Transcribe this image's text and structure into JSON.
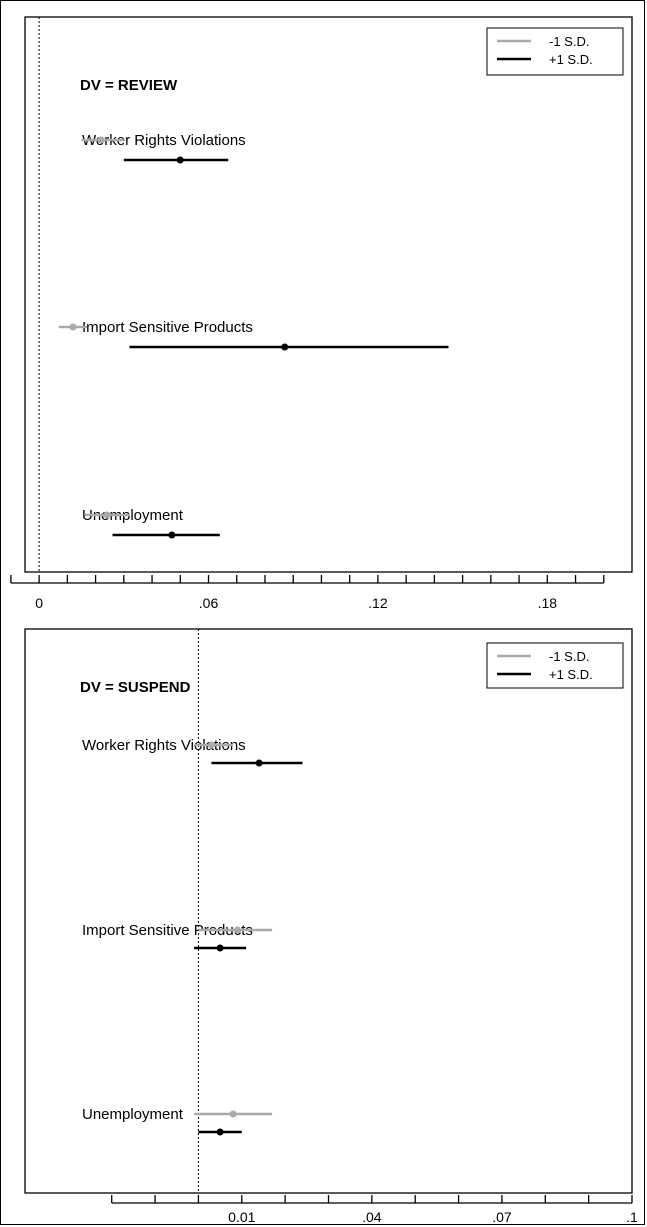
{
  "chart_data": [
    {
      "type": "dot-and-whisker",
      "title": "DV = REVIEW",
      "categories": [
        "Worker Rights Violations",
        "Import Sensitive Products",
        "Unemployment"
      ],
      "xlim": [
        -0.005,
        0.21
      ],
      "x_ticks": [
        0,
        0.06,
        0.12,
        0.18
      ],
      "x_tick_labels": [
        "0",
        ".06",
        ".12",
        ".18"
      ],
      "minor_ticks": [
        -0.01,
        0.01,
        0.02,
        0.03,
        0.04,
        0.05,
        0.07,
        0.08,
        0.09,
        0.1,
        0.11,
        0.13,
        0.14,
        0.15,
        0.16,
        0.17,
        0.19,
        0.2
      ],
      "reference_line": 0,
      "legend": {
        "position": "top-right",
        "entries": [
          "-1 S.D.",
          "+1 S.D."
        ]
      },
      "series": [
        {
          "name": "-1 S.D.",
          "color": "#aaaaaa",
          "points": [
            {
              "category": "Worker Rights Violations",
              "est": 0.022,
              "lo": 0.015,
              "hi": 0.03
            },
            {
              "category": "Import Sensitive Products",
              "est": 0.012,
              "lo": 0.007,
              "hi": 0.017
            },
            {
              "category": "Unemployment",
              "est": 0.024,
              "lo": 0.016,
              "hi": 0.032
            }
          ]
        },
        {
          "name": "+1 S.D.",
          "color": "#000000",
          "points": [
            {
              "category": "Worker Rights Violations",
              "est": 0.05,
              "lo": 0.03,
              "hi": 0.067
            },
            {
              "category": "Import Sensitive Products",
              "est": 0.087,
              "lo": 0.032,
              "hi": 0.145
            },
            {
              "category": "Unemployment",
              "est": 0.047,
              "lo": 0.026,
              "hi": 0.064
            }
          ]
        }
      ]
    },
    {
      "type": "dot-and-whisker",
      "title": "DV = SUSPEND",
      "categories": [
        "Worker Rights Violations",
        "Import Sensitive Products",
        "Unemployment"
      ],
      "xlim": [
        -0.04,
        0.1
      ],
      "x_ticks": [
        0.01,
        0.04,
        0.07,
        0.1
      ],
      "x_tick_labels": [
        "0.01",
        ".04",
        ".07",
        ".1"
      ],
      "minor_ticks": [
        -0.02,
        -0.01,
        0,
        0.02,
        0.03,
        0.05,
        0.06,
        0.08,
        0.09
      ],
      "reference_line": 0,
      "legend": {
        "position": "top-right",
        "entries": [
          "-1 S.D.",
          "+1 S.D."
        ]
      },
      "series": [
        {
          "name": "-1 S.D.",
          "color": "#aaaaaa",
          "points": [
            {
              "category": "Worker Rights Violations",
              "est": 0.003,
              "lo": -0.001,
              "hi": 0.008
            },
            {
              "category": "Import Sensitive Products",
              "est": 0.009,
              "lo": 0.0,
              "hi": 0.017
            },
            {
              "category": "Unemployment",
              "est": 0.008,
              "lo": -0.001,
              "hi": 0.017
            }
          ]
        },
        {
          "name": "+1 S.D.",
          "color": "#000000",
          "points": [
            {
              "category": "Worker Rights Violations",
              "est": 0.014,
              "lo": 0.003,
              "hi": 0.024
            },
            {
              "category": "Import Sensitive Products",
              "est": 0.005,
              "lo": -0.001,
              "hi": 0.011
            },
            {
              "category": "Unemployment",
              "est": 0.005,
              "lo": 0.0,
              "hi": 0.01
            }
          ]
        }
      ]
    }
  ]
}
